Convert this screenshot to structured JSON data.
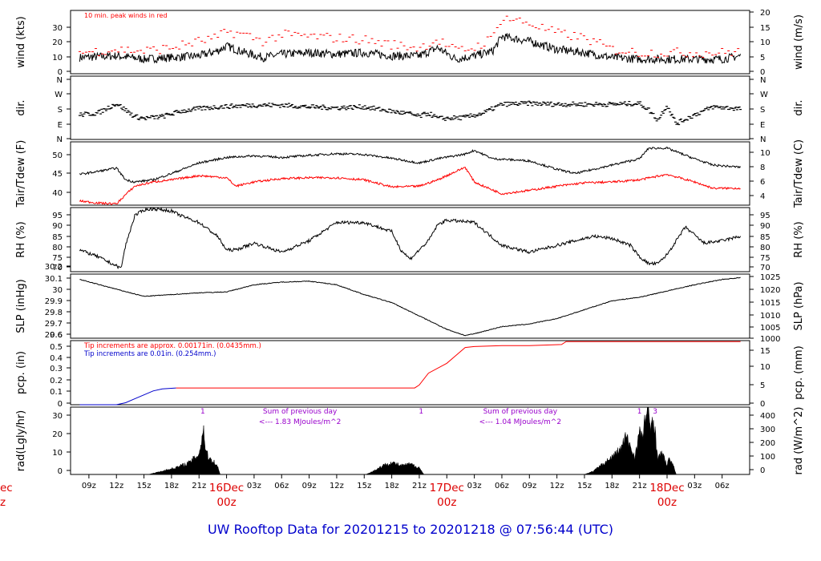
{
  "title": "UW Rooftop Data for 20201215  to  20201218 @ 07:56:44  (UTC)",
  "colors": {
    "title": "#0000cc",
    "date_labels": "#dd0000",
    "red_series": "#ff0000",
    "blue_series": "#0000cc",
    "purple_annotations": "#9900cc",
    "black": "#000000"
  },
  "time_axis": {
    "tick_labels": [
      "09z",
      "12z",
      "15z",
      "18z",
      "21z",
      "03z",
      "06z",
      "09z",
      "12z",
      "15z",
      "18z",
      "21z",
      "03z",
      "06z",
      "09z",
      "12z",
      "15z",
      "18z",
      "21z",
      "03z",
      "06z"
    ],
    "tick_hours": [
      9,
      12,
      15,
      18,
      21,
      27,
      30,
      33,
      36,
      39,
      42,
      45,
      51,
      54,
      57,
      60,
      63,
      66,
      69,
      75,
      78
    ],
    "day_labels": [
      {
        "hour": 24,
        "date": "16Dec",
        "time": "00z"
      },
      {
        "hour": 48,
        "date": "17Dec",
        "time": "00z"
      },
      {
        "hour": 72,
        "date": "18Dec",
        "time": "00z"
      }
    ],
    "clipped_left_label": {
      "date": "ec",
      "time": "z"
    }
  },
  "chart_data": [
    {
      "type": "line",
      "name": "wind",
      "ylabel_left": "wind (kts)",
      "ylabel_right": "wind (m/s)",
      "yticks_left": [
        0,
        10,
        20,
        30
      ],
      "yticks_right": [
        0,
        5,
        10,
        15,
        20
      ],
      "ylim": [
        0,
        39
      ],
      "annotation": "10 min. peak winds in red",
      "series": [
        {
          "name": "",
          "color": "#000000",
          "x": [
            8,
            12,
            15,
            18,
            21,
            23,
            24,
            26,
            28,
            30,
            33,
            36,
            39,
            42,
            45,
            47,
            49,
            51,
            53,
            54,
            57,
            60,
            63,
            66,
            69,
            72,
            75,
            78,
            80
          ],
          "y": [
            10,
            11,
            9,
            10,
            11,
            14,
            17,
            13,
            10,
            12,
            13,
            12,
            13,
            11,
            11,
            16,
            9,
            11,
            14,
            23,
            20,
            15,
            13,
            10,
            9,
            9,
            9,
            9,
            11
          ]
        },
        {
          "name": "",
          "color": "#ff0000",
          "x": [
            8,
            12,
            15,
            18,
            21,
            23,
            24,
            26,
            28,
            30,
            33,
            36,
            39,
            42,
            45,
            47,
            49,
            51,
            53,
            54,
            57,
            60,
            63,
            66,
            69,
            72,
            75,
            78,
            80
          ],
          "y": [
            13,
            15,
            14,
            16,
            20,
            22,
            26,
            24,
            20,
            24,
            23,
            22,
            21,
            18,
            16,
            21,
            14,
            16,
            22,
            35,
            31,
            25,
            22,
            15,
            13,
            13,
            13,
            13,
            14
          ]
        }
      ]
    },
    {
      "type": "scatter",
      "name": "dir",
      "ylabel_left": "dir.",
      "ylabel_right": "dir.",
      "yticks_left": [
        "N",
        "E",
        "S",
        "W",
        "N"
      ],
      "yticks_right": [
        "N",
        "E",
        "S",
        "W",
        "N"
      ],
      "ylim": [
        0,
        360
      ],
      "series": [
        {
          "name": "",
          "color": "#000000",
          "x": [
            8,
            10,
            12,
            14,
            15,
            17,
            19,
            21,
            23,
            25,
            27,
            30,
            33,
            36,
            39,
            42,
            44,
            45,
            46,
            47,
            48,
            50,
            52,
            54,
            57,
            60,
            63,
            66,
            69,
            70,
            71,
            72,
            73,
            75,
            77,
            80
          ],
          "y": [
            140,
            150,
            205,
            130,
            120,
            130,
            160,
            175,
            185,
            190,
            195,
            195,
            185,
            180,
            185,
            160,
            145,
            130,
            150,
            120,
            120,
            125,
            150,
            200,
            205,
            200,
            200,
            200,
            205,
            170,
            110,
            195,
            90,
            140,
            185,
            175
          ]
        }
      ]
    },
    {
      "type": "line",
      "name": "tair_tdew",
      "ylabel_left": "Tair/Tdew (F)",
      "ylabel_right": "Tair/Tdew (C)",
      "yticks_left": [
        40,
        45,
        50
      ],
      "yticks_right": [
        4,
        6,
        8,
        10
      ],
      "ylim": [
        37.5,
        52.5
      ],
      "series": [
        {
          "name": "",
          "color": "#000000",
          "x": [
            8,
            10,
            12,
            13,
            14,
            16,
            18,
            21,
            24,
            27,
            30,
            33,
            36,
            39,
            42,
            45,
            47,
            50,
            51,
            53,
            54,
            57,
            60,
            62,
            64,
            66,
            69,
            70,
            72,
            75,
            77,
            80
          ],
          "y": [
            44.8,
            45.5,
            46.3,
            43.5,
            43,
            43.5,
            45,
            47.5,
            48.8,
            49.2,
            48.8,
            49.3,
            49.7,
            49.5,
            48.6,
            47.5,
            48.5,
            49.6,
            50.5,
            48.5,
            48.4,
            48,
            46,
            45,
            46,
            47,
            48.5,
            51,
            51,
            48.5,
            47,
            46.5
          ]
        },
        {
          "name": "",
          "color": "#ff0000",
          "x": [
            8,
            10,
            12,
            13,
            14,
            16,
            18,
            21,
            24,
            25,
            27,
            30,
            33,
            36,
            39,
            42,
            45,
            47,
            50,
            51,
            52,
            54,
            57,
            60,
            63,
            66,
            69,
            72,
            75,
            77,
            80
          ],
          "y": [
            38.5,
            38,
            37.8,
            40,
            42,
            43,
            43.5,
            44.5,
            44,
            42,
            43,
            43.8,
            44,
            44,
            43.5,
            41.8,
            42,
            43.5,
            46.5,
            43,
            42,
            40.2,
            41,
            42,
            42.8,
            43,
            43.5,
            44.8,
            43,
            41.5,
            41.5
          ]
        }
      ]
    },
    {
      "type": "line",
      "name": "rh",
      "ylabel_left": "RH (%)",
      "ylabel_right": "RH (%)",
      "yticks_left": [
        70,
        75,
        80,
        85,
        90,
        95
      ],
      "yticks_right": [
        70,
        75,
        80,
        85,
        90,
        95
      ],
      "ylim": [
        68.5,
        96.5
      ],
      "series": [
        {
          "name": "",
          "color": "#000000",
          "x": [
            8,
            10,
            11.5,
            12.5,
            13,
            14,
            15,
            16,
            18,
            19,
            21,
            23,
            24,
            25,
            27,
            30,
            33,
            36,
            39,
            42,
            43,
            44,
            45,
            46,
            47,
            48,
            51,
            54,
            57,
            60,
            62,
            64,
            66,
            68,
            69,
            70,
            71,
            72,
            74,
            76,
            78,
            80
          ],
          "y": [
            78,
            75,
            72,
            70,
            80,
            93,
            95.5,
            96,
            95,
            93,
            90,
            84,
            78,
            78,
            81,
            77,
            82,
            90,
            90,
            86,
            78,
            74,
            78,
            82,
            89,
            91,
            90,
            80,
            77,
            80,
            82,
            84,
            83,
            80,
            75,
            72,
            72,
            76,
            88,
            81,
            82,
            84
          ]
        }
      ]
    },
    {
      "type": "line",
      "name": "slp",
      "ylabel_left": "SLP (inHg)",
      "ylabel_right": "SLP (hPa)",
      "yticks_left": [
        29.6,
        29.7,
        29.8,
        29.9,
        30.0,
        30.1,
        30.2
      ],
      "yticks_right": [
        1000,
        1005,
        1010,
        1015,
        1020,
        1025
      ],
      "ylim": [
        29.55,
        30.27
      ],
      "series": [
        {
          "name": "",
          "color": "#000000",
          "x": [
            8,
            12,
            15,
            18,
            21,
            24,
            27,
            30,
            33,
            36,
            39,
            42,
            45,
            48,
            50,
            51,
            54,
            57,
            60,
            63,
            66,
            69,
            72,
            75,
            78,
            80
          ],
          "y": [
            30.21,
            30.1,
            30.02,
            30.04,
            30.06,
            30.07,
            30.15,
            30.18,
            30.19,
            30.15,
            30.04,
            29.95,
            29.8,
            29.65,
            29.58,
            29.6,
            29.68,
            29.71,
            29.77,
            29.87,
            29.97,
            30.01,
            30.08,
            30.15,
            30.21,
            30.23
          ]
        }
      ]
    },
    {
      "type": "line",
      "name": "pcp",
      "ylabel_left": "pcp. (in)",
      "ylabel_right": "pcp. (mm)",
      "yticks_left": [
        0.0,
        0.1,
        0.2,
        0.3,
        0.4,
        0.5,
        0.6
      ],
      "yticks_right": [
        0,
        5,
        10,
        15
      ],
      "ylim": [
        0,
        0.65
      ],
      "annotations": [
        {
          "text": "Tip increments are approx. 0.00171in. (0.0435mm.)",
          "color": "#ff0000"
        },
        {
          "text": "Tip increments are 0.01in. (0.254mm.)",
          "color": "#0000cc"
        }
      ],
      "series": [
        {
          "name": "",
          "color": "#0000cc",
          "x": [
            8,
            12,
            13,
            14,
            15,
            16,
            17,
            18.5
          ],
          "y": [
            0.0,
            0.0,
            0.02,
            0.06,
            0.1,
            0.14,
            0.16,
            0.17
          ]
        },
        {
          "name": "",
          "color": "#ff0000",
          "x": [
            18.5,
            44.5,
            45,
            46,
            48,
            49,
            50,
            51,
            54,
            57,
            60.5,
            61,
            80
          ],
          "y": [
            0.17,
            0.17,
            0.2,
            0.32,
            0.42,
            0.5,
            0.58,
            0.59,
            0.6,
            0.6,
            0.61,
            0.64,
            0.64
          ]
        }
      ]
    },
    {
      "type": "area",
      "name": "rad",
      "ylabel_left": "rad(Lgly/hr)",
      "ylabel_right": "rad (W/m^2)",
      "yticks_left": [
        0,
        10,
        20,
        30
      ],
      "yticks_right": [
        0,
        100,
        200,
        300,
        400
      ],
      "ylim": [
        0,
        37
      ],
      "annotations": [
        {
          "text": "1",
          "hour": 21.4,
          "color": "#9900cc"
        },
        {
          "text": "Sum of previous day",
          "hour": 32,
          "color": "#9900cc"
        },
        {
          "text": "<--- 1.83 MJoules/m^2",
          "hour": 32,
          "color": "#9900cc"
        },
        {
          "text": "1",
          "hour": 45.2,
          "color": "#9900cc"
        },
        {
          "text": "Sum of previous day",
          "hour": 56,
          "color": "#9900cc"
        },
        {
          "text": "<--- 1.04 MJoules/m^2",
          "hour": 56,
          "color": "#9900cc"
        },
        {
          "text": "1",
          "hour": 69,
          "color": "#9900cc"
        },
        {
          "text": "3",
          "hour": 70.7,
          "color": "#9900cc"
        }
      ],
      "series": [
        {
          "name": "",
          "color": "#000000",
          "x": [
            15.5,
            17,
            18.5,
            19.5,
            20,
            21,
            21.3,
            21.5,
            21.7,
            22,
            22.5,
            23,
            23.3,
            39.2,
            40,
            41,
            42,
            43,
            44,
            45,
            45.5,
            63,
            64,
            65,
            66,
            67,
            67.5,
            68,
            68.5,
            69,
            69.3,
            69.6,
            69.9,
            70.2,
            70.5,
            70.8,
            71,
            71.5,
            72,
            72.3,
            72.6,
            73
          ],
          "y": [
            0,
            2,
            4,
            6,
            7,
            12,
            20,
            27,
            15,
            10,
            8,
            5,
            0,
            0,
            2,
            5,
            7,
            5,
            6,
            4,
            0,
            0,
            2,
            6,
            10,
            15,
            22,
            16,
            10,
            25,
            20,
            33,
            36,
            26,
            36,
            18,
            10,
            12,
            5,
            10,
            6,
            0
          ]
        }
      ]
    }
  ]
}
